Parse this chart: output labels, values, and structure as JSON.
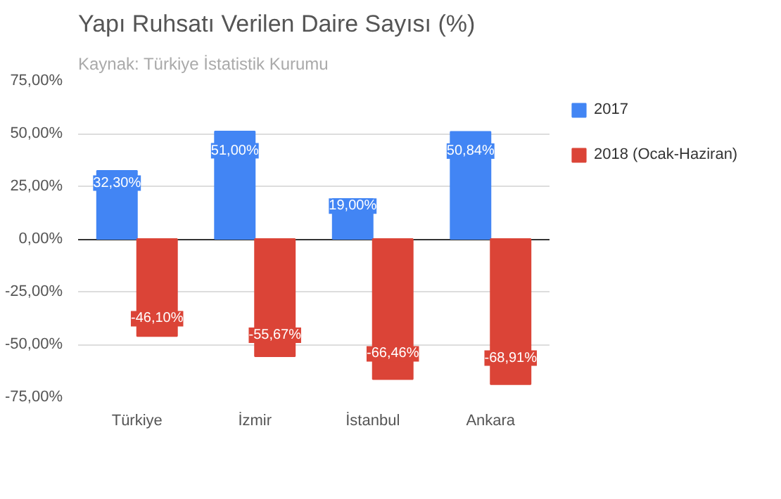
{
  "chart_data": {
    "type": "bar",
    "title": "Yapı Ruhsatı Verilen Daire Sayısı (%)",
    "annotations": [
      "Kaynak: Türkiye İstatistik Kurumu"
    ],
    "categories": [
      "Türkiye",
      "İzmir",
      "İstanbul",
      "Ankara"
    ],
    "series": [
      {
        "name": "2017",
        "color": "#4285f4",
        "values": [
          32.3,
          51.0,
          19.0,
          50.84
        ],
        "value_labels": [
          "32,30%",
          "51,00%",
          "19,00%",
          "50,84%"
        ]
      },
      {
        "name": "2018 (Ocak-Haziran)",
        "color": "#db4437",
        "values": [
          -46.1,
          -55.67,
          -66.46,
          -68.91
        ],
        "value_labels": [
          "-46,10%",
          "-55,67%",
          "-66,46%",
          "-68,91%"
        ]
      }
    ],
    "ylim": [
      -75,
      75
    ],
    "yticks": [
      {
        "value": -75,
        "label": "-75,00%"
      },
      {
        "value": -50,
        "label": "-50,00%"
      },
      {
        "value": -25,
        "label": "-25,00%"
      },
      {
        "value": 0,
        "label": "0,00%"
      },
      {
        "value": 25,
        "label": "25,00%"
      },
      {
        "value": 50,
        "label": "50,00%"
      },
      {
        "value": 75,
        "label": "75,00%"
      }
    ],
    "grid": "y",
    "legend": "right"
  }
}
